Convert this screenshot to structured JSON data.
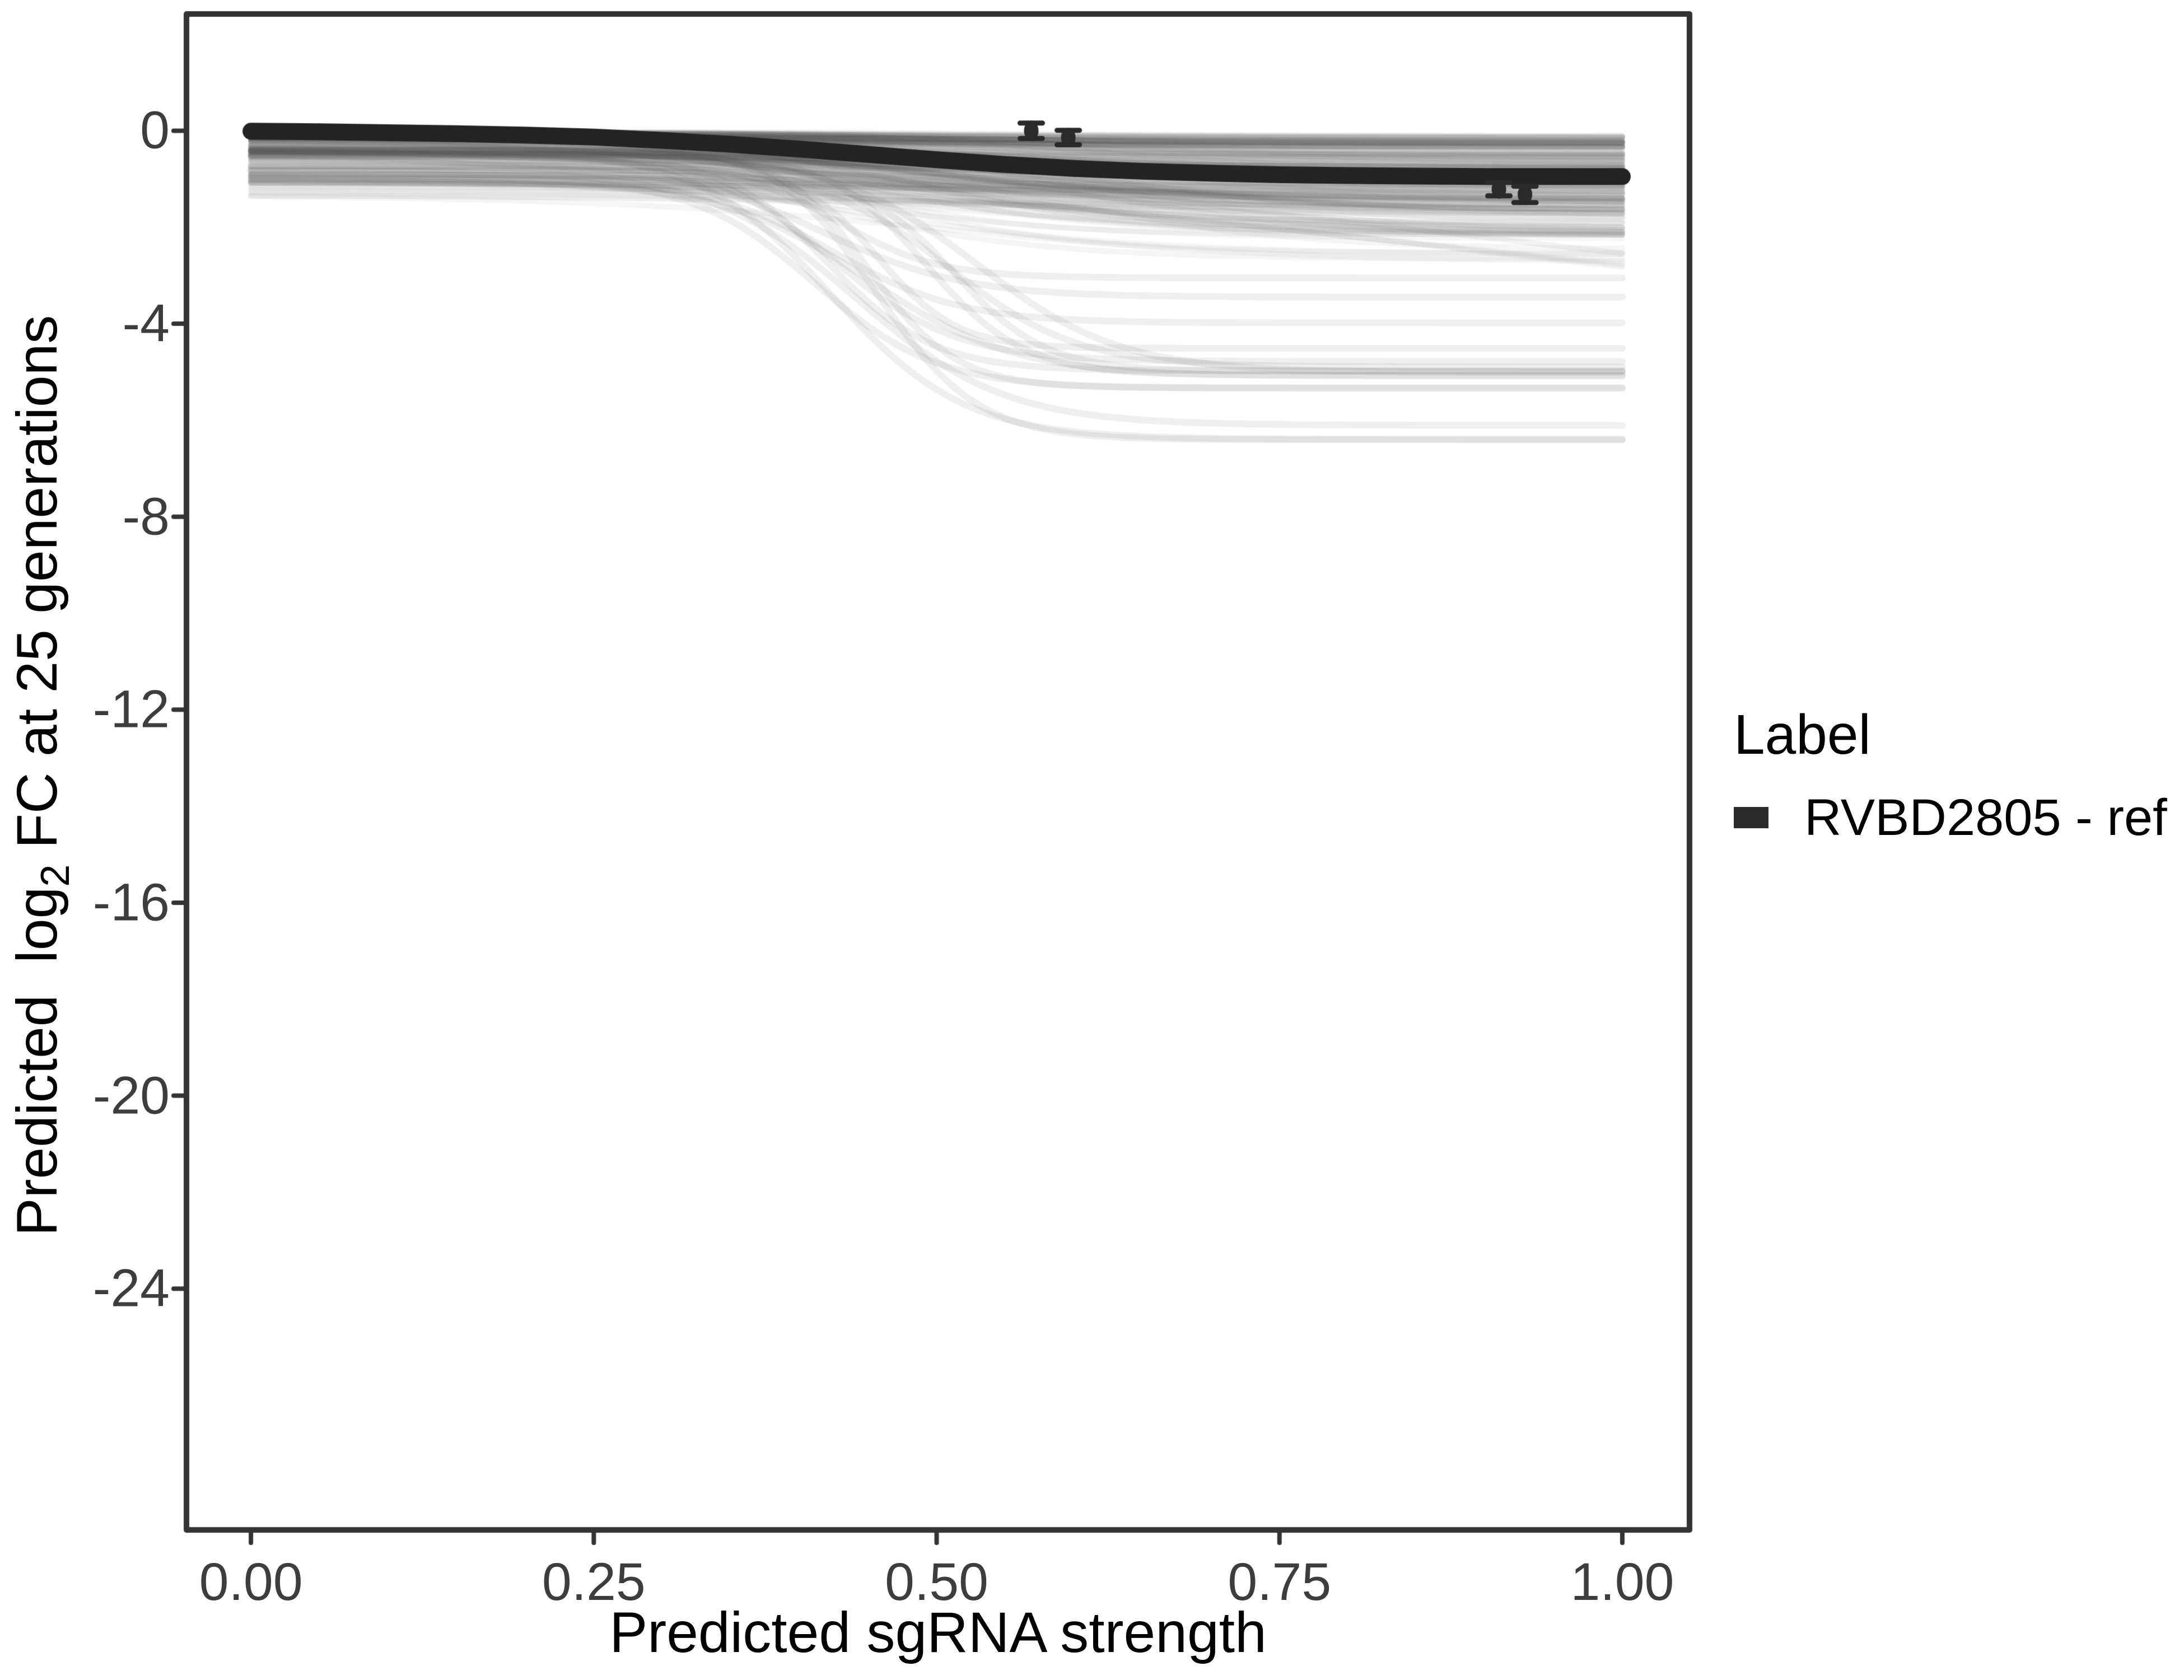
{
  "chart_data": {
    "type": "line",
    "title": "",
    "xlabel": "Predicted sgRNA strength",
    "ylabel": {
      "prefix": "Predicted  log",
      "subscript": "2",
      "suffix": " FC at 25 generations"
    },
    "x_tick_labels": [
      "0.00",
      "0.25",
      "0.50",
      "0.75",
      "1.00"
    ],
    "x_tick_values": [
      0,
      0.25,
      0.5,
      0.75,
      1
    ],
    "y_tick_labels": [
      "0",
      "-4",
      "-8",
      "-12",
      "-16",
      "-20",
      "-24"
    ],
    "y_tick_values": [
      0,
      -4,
      -8,
      -12,
      -16,
      -20,
      -24
    ],
    "xlim": [
      -0.047,
      1.049
    ],
    "ylim": [
      -29.0,
      2.42
    ],
    "grid": false,
    "style": {
      "panel_border_color": "#333333",
      "panel_border_width": 10,
      "tick_color": "#333333",
      "tick_length": 18,
      "tick_width": 8,
      "tick_label_color": "#3d3d3d",
      "background": "#ffffff",
      "ensemble_color": "#505050",
      "point_color": "#2a2a2a"
    },
    "legend": {
      "title": "Label",
      "position": "right",
      "items": [
        {
          "label": "RVBD2805 - ref",
          "color": "#2a2a2a"
        }
      ]
    },
    "series": [
      {
        "name": "RVBD2805 - ref",
        "type": "line",
        "color": "#232323",
        "line_width": 30,
        "x": [
          0,
          0.05,
          0.1,
          0.15,
          0.2,
          0.25,
          0.3,
          0.35,
          0.4,
          0.45,
          0.5,
          0.55,
          0.6,
          0.65,
          0.7,
          0.75,
          0.8,
          0.85,
          0.9,
          0.95,
          1.0
        ],
        "y": [
          -0.01,
          -0.02,
          -0.04,
          -0.06,
          -0.09,
          -0.13,
          -0.2,
          -0.28,
          -0.38,
          -0.49,
          -0.6,
          -0.7,
          -0.78,
          -0.84,
          -0.88,
          -0.91,
          -0.93,
          -0.94,
          -0.95,
          -0.95,
          -0.95
        ]
      }
    ],
    "points_with_error_bars": [
      {
        "x": 0.569,
        "y": 0.0,
        "error": 0.16
      },
      {
        "x": 0.596,
        "y": -0.14,
        "error": 0.15
      },
      {
        "x": 0.91,
        "y": -1.21,
        "error": 0.14
      },
      {
        "x": 0.929,
        "y": -1.32,
        "error": 0.17
      }
    ],
    "background_ensemble": {
      "description": "unlabeled predicted sgRNA depletion sigmoids (translucent gray)",
      "seed": 20,
      "curve_shape": "y0 + (y1 - y0) / (1 + exp(-(x - mid)/slope))",
      "groups": [
        {
          "count": 150,
          "alpha": 0.055,
          "width": 10,
          "start_base": -0.02,
          "start_spread": 0.5,
          "start_power": 2,
          "drop_base": 0.08,
          "drop_spread": 2.1,
          "drop_power": 2.2,
          "mid_min": 0.38,
          "mid_max": 0.62,
          "slope_min": 0.07,
          "slope_max": 0.15
        },
        {
          "count": 50,
          "alpha": 0.05,
          "width": 10,
          "start_base": -0.5,
          "start_spread": 0.85,
          "start_power": 1,
          "drop_base": 0.15,
          "drop_spread": 1.35,
          "drop_power": 2,
          "mid_min": 0.35,
          "mid_max": 0.65,
          "slope_min": 0.08,
          "slope_max": 0.16
        },
        {
          "count": 16,
          "alpha": 0.09,
          "width": 12,
          "start_base": -0.25,
          "start_spread": 0.9,
          "start_power": 1,
          "end_min": -6.6,
          "end_max": -2.8,
          "mid_min": 0.41,
          "mid_max": 0.53,
          "slope_min": 0.028,
          "slope_max": 0.055
        },
        {
          "count": 3,
          "alpha": 0.07,
          "width": 10,
          "start_base": -0.6,
          "start_spread": 0.6,
          "start_power": 1,
          "end_min": -4.8,
          "end_max": -3.4,
          "mid_min": 0.78,
          "mid_max": 0.95,
          "slope_min": 0.18,
          "slope_max": 0.28
        }
      ]
    }
  }
}
